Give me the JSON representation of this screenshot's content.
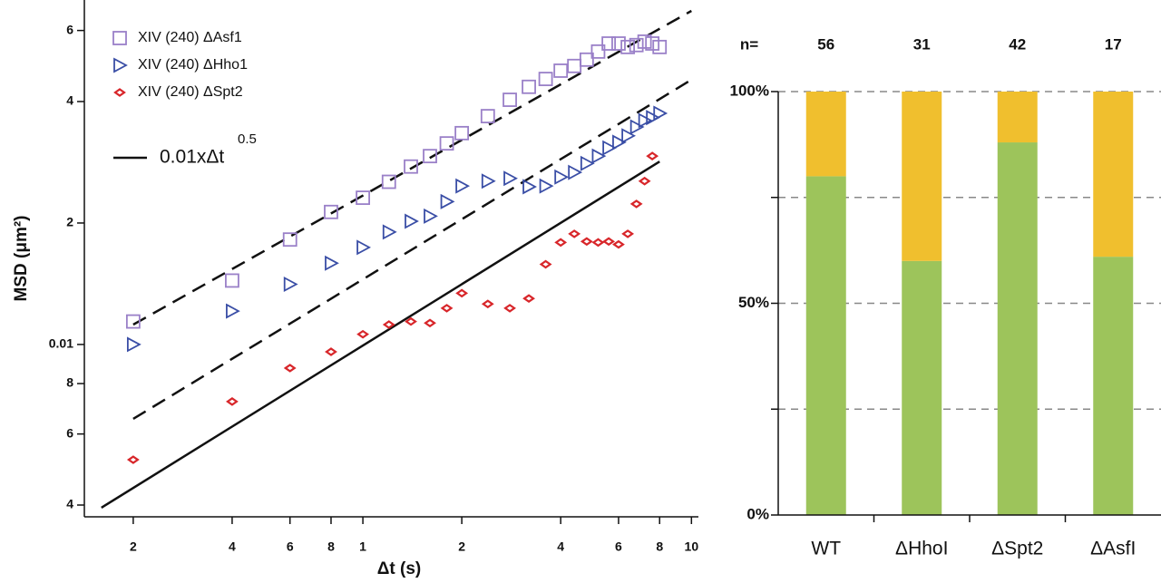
{
  "chart_data": [
    {
      "type": "scatter",
      "log_x": true,
      "log_y": true,
      "x_label": "Δt (s)",
      "y_label": "MSD (μm²)",
      "xlim": [
        0.142,
        10.5
      ],
      "ylim": [
        0.00374,
        0.0714
      ],
      "xticks": [
        {
          "value": 0.2,
          "label": "2"
        },
        {
          "value": 0.4,
          "label": "4"
        },
        {
          "value": 0.6,
          "label": "6"
        },
        {
          "value": 0.8,
          "label": "8"
        },
        1,
        {
          "value": 2,
          "label": "2"
        },
        {
          "value": 4,
          "label": "4"
        },
        {
          "value": 6,
          "label": "6"
        },
        {
          "value": 8,
          "label": "8"
        },
        10
      ],
      "yticks": [
        {
          "value": 0.004,
          "label": "4"
        },
        {
          "value": 0.006,
          "label": "6"
        },
        {
          "value": 0.008,
          "label": "8"
        },
        0.01,
        {
          "value": 0.02,
          "label": "2"
        },
        {
          "value": 0.04,
          "label": "4"
        },
        {
          "value": 0.06,
          "label": "6"
        }
      ],
      "x": [
        0.2,
        0.4,
        0.6,
        0.8,
        1.0,
        1.2,
        1.4,
        1.6,
        1.8,
        2.0,
        2.4,
        2.8,
        3.2,
        3.6,
        4.0,
        4.4,
        4.8,
        5.2,
        5.6,
        6.0,
        6.4,
        6.8,
        7.2,
        7.6,
        8.0
      ],
      "series": [
        {
          "name": "XIV (240) ΔAsf1",
          "color": "#9a80c8",
          "marker": "square",
          "values": [
            0.0114,
            0.0144,
            0.0182,
            0.0213,
            0.0231,
            0.0253,
            0.0276,
            0.0293,
            0.0315,
            0.0334,
            0.0368,
            0.0404,
            0.0435,
            0.0455,
            0.0477,
            0.049,
            0.0508,
            0.0532,
            0.0557,
            0.0557,
            0.0546,
            0.0552,
            0.0563,
            0.0557,
            0.0546
          ]
        },
        {
          "name": "XIV (240) ΔHho1",
          "color": "#3a4ea6",
          "marker": "triangle",
          "values": [
            0.01,
            0.0121,
            0.0141,
            0.0159,
            0.0174,
            0.019,
            0.0202,
            0.0208,
            0.0226,
            0.0247,
            0.0254,
            0.0258,
            0.0246,
            0.0247,
            0.026,
            0.0267,
            0.0281,
            0.0293,
            0.0307,
            0.0317,
            0.0329,
            0.0346,
            0.0359,
            0.0365,
            0.0374
          ]
        },
        {
          "name": "XIV (240) ΔSpt2",
          "color": "#d8262a",
          "marker": "diamond",
          "values": [
            0.00518,
            0.00722,
            0.00874,
            0.00959,
            0.0106,
            0.0112,
            0.0114,
            0.0113,
            0.0123,
            0.0134,
            0.0126,
            0.0123,
            0.013,
            0.0158,
            0.0179,
            0.0188,
            0.018,
            0.0179,
            0.018,
            0.0177,
            0.0188,
            0.0223,
            0.0254,
            0.0293,
            null
          ]
        }
      ],
      "lines": [
        {
          "style": "solid",
          "x": [
            0.16,
            8.0
          ],
          "y": [
            0.00394,
            0.0284
          ]
        },
        {
          "style": "dashed",
          "x": [
            0.2,
            10
          ],
          "y": [
            0.0112,
            0.0671
          ]
        },
        {
          "style": "dashed",
          "x": [
            0.2,
            10
          ],
          "y": [
            0.00654,
            0.0453
          ]
        }
      ],
      "fit_label": "0.01xΔt",
      "fit_label_exponent": "0.5"
    },
    {
      "type": "bar",
      "stacked": true,
      "categories": [
        "WT",
        "ΔHhoI",
        "ΔSpt2",
        "ΔAsfI"
      ],
      "series": [
        {
          "color": "#9dc45b",
          "values": [
            80,
            60,
            88,
            61
          ]
        },
        {
          "color": "#f0bf2e",
          "values": [
            20,
            40,
            12,
            39
          ]
        }
      ],
      "ylim": [
        0,
        100
      ],
      "yticks": [
        {
          "value": 0,
          "label": "0%"
        },
        {
          "value": 25,
          "label": null
        },
        {
          "value": 50,
          "label": "50%"
        },
        {
          "value": 75,
          "label": null
        },
        {
          "value": 100,
          "label": "100%"
        }
      ],
      "grid": true,
      "grid_style": "dashed",
      "n_label": "n=",
      "n": [
        56,
        31,
        42,
        17
      ]
    }
  ]
}
